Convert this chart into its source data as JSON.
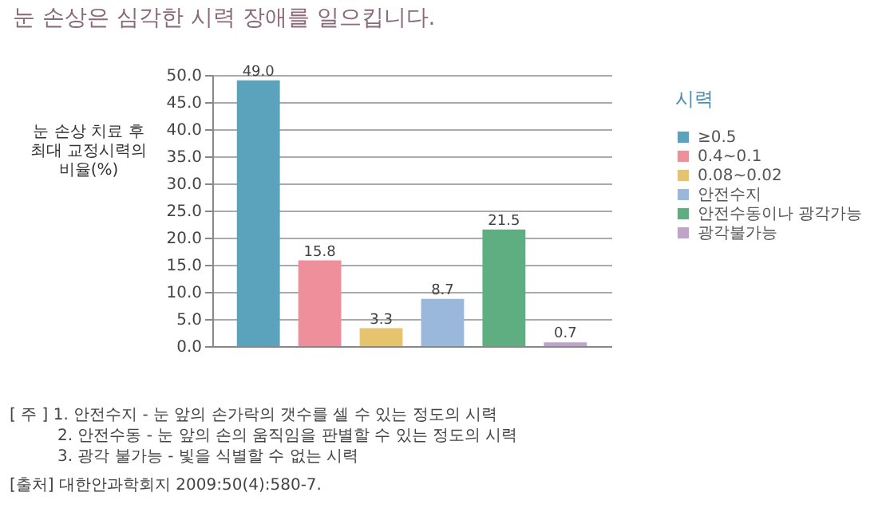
{
  "chart_data": {
    "type": "bar",
    "title": "눈 손상은 심각한 시력 장애를 일으킵니다.",
    "ylabel": "눈 손상 치료 후 최대 교정시력의 비율(%)",
    "legend_title": "시력",
    "categories": [
      null,
      null,
      null,
      null,
      null,
      null
    ],
    "series": [
      {
        "name": "≥0.5",
        "color": "#5ba3bd",
        "values": [
          49.0,
          null,
          null,
          null,
          null,
          null
        ],
        "value_labels": [
          "49.0",
          null,
          null,
          null,
          null,
          null
        ]
      },
      {
        "name": "0.4~0.1",
        "color": "#ef8f9c",
        "values": [
          null,
          15.8,
          null,
          null,
          null,
          null
        ],
        "value_labels": [
          null,
          "15.8",
          null,
          null,
          null,
          null
        ]
      },
      {
        "name": "0.08~0.02",
        "color": "#e6c46e",
        "values": [
          null,
          null,
          3.3,
          null,
          null,
          null
        ],
        "value_labels": [
          null,
          null,
          "3.3",
          null,
          null,
          null
        ]
      },
      {
        "name": "안전수지",
        "color": "#9ab8dc",
        "values": [
          null,
          null,
          null,
          8.7,
          null,
          null
        ],
        "value_labels": [
          null,
          null,
          null,
          "8.7",
          null,
          null
        ]
      },
      {
        "name": "안전수동이나 광각가능",
        "color": "#5fae82",
        "values": [
          null,
          null,
          null,
          null,
          21.5,
          null
        ],
        "value_labels": [
          null,
          null,
          null,
          null,
          "21.5",
          null
        ]
      },
      {
        "name": "광각불가능",
        "color": "#c0a3c8",
        "values": [
          null,
          null,
          null,
          null,
          null,
          0.7
        ],
        "value_labels": [
          null,
          null,
          null,
          null,
          null,
          "0.7"
        ]
      }
    ],
    "ylim": [
      0,
      50
    ],
    "yticks": [
      {
        "value": 0,
        "label": "0.0"
      },
      {
        "value": 5,
        "label": "5.0"
      },
      {
        "value": 10,
        "label": "10.0"
      },
      {
        "value": 15,
        "label": "15.0"
      },
      {
        "value": 20,
        "label": "20.0"
      },
      {
        "value": 25,
        "label": "25.0"
      },
      {
        "value": 30,
        "label": "30.0"
      },
      {
        "value": 35,
        "label": "35.0"
      },
      {
        "value": 40,
        "label": "40.0"
      },
      {
        "value": 45,
        "label": "45.0"
      },
      {
        "value": 50,
        "label": "50.0"
      }
    ],
    "grid": "y",
    "legend": "right",
    "tick_labels": "y",
    "annotations": [
      "[ 주 ] 1. 안전수지 - 눈 앞의 손가락의 갯수를 셀 수 있는 정도의 시력",
      "2. 안전수동 - 눈 앞의 손의 움직임을 판별할 수 있는 정도의 시력",
      "3. 광각 불가능 - 빛을 식별할 수 없는 시력",
      "[출처] 대한안과학회지 2009:50(4):580-7."
    ]
  }
}
